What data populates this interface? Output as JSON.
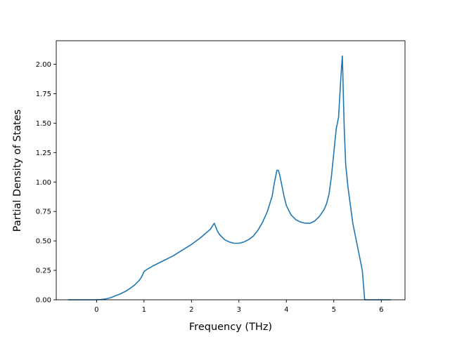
{
  "chart_data": {
    "type": "line",
    "xlabel": "Frequency (THz)",
    "ylabel": "Partial Density of States",
    "xlim": [
      -0.85,
      6.5
    ],
    "ylim": [
      0.0,
      2.2
    ],
    "x_ticks": [
      "0",
      "1",
      "2",
      "3",
      "4",
      "5",
      "6"
    ],
    "y_ticks": [
      "0.00",
      "0.25",
      "0.50",
      "0.75",
      "1.00",
      "1.25",
      "1.50",
      "1.75",
      "2.00"
    ],
    "line_color": "#1f77b4",
    "grid": false,
    "series": [
      {
        "x": [
          -0.6,
          -0.4,
          -0.2,
          0.0,
          0.1,
          0.2,
          0.3,
          0.4,
          0.5,
          0.6,
          0.7,
          0.8,
          0.9,
          0.95,
          1.0,
          1.05,
          1.2,
          1.4,
          1.6,
          1.8,
          2.0,
          2.2,
          2.4,
          2.48,
          2.55,
          2.6,
          2.7,
          2.8,
          2.9,
          3.0,
          3.1,
          3.2,
          3.3,
          3.4,
          3.5,
          3.6,
          3.7,
          3.75,
          3.8,
          3.83,
          3.86,
          3.9,
          3.95,
          4.0,
          4.05,
          4.1,
          4.2,
          4.3,
          4.4,
          4.5,
          4.6,
          4.7,
          4.8,
          4.85,
          4.9,
          4.95,
          5.0,
          5.05,
          5.1,
          5.15,
          5.18,
          5.2,
          5.22,
          5.25,
          5.3,
          5.4,
          5.5,
          5.6,
          5.65,
          5.8,
          6.0,
          6.2
        ],
        "y": [
          0.0,
          0.0,
          0.0,
          0.0,
          0.003,
          0.008,
          0.018,
          0.035,
          0.05,
          0.07,
          0.095,
          0.125,
          0.165,
          0.195,
          0.24,
          0.255,
          0.29,
          0.33,
          0.37,
          0.42,
          0.47,
          0.53,
          0.6,
          0.65,
          0.58,
          0.55,
          0.51,
          0.49,
          0.48,
          0.48,
          0.49,
          0.51,
          0.54,
          0.59,
          0.66,
          0.75,
          0.88,
          1.0,
          1.1,
          1.1,
          1.06,
          0.98,
          0.88,
          0.8,
          0.76,
          0.72,
          0.68,
          0.66,
          0.65,
          0.65,
          0.67,
          0.71,
          0.77,
          0.82,
          0.9,
          1.05,
          1.25,
          1.45,
          1.55,
          1.9,
          2.07,
          1.75,
          1.45,
          1.15,
          0.95,
          0.65,
          0.45,
          0.25,
          0.0,
          0.0,
          0.0,
          0.0
        ]
      }
    ]
  }
}
